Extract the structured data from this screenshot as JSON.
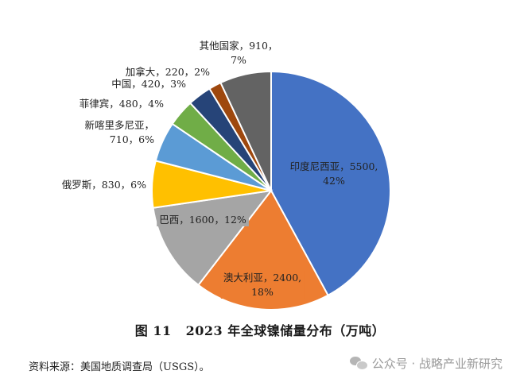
{
  "chart_data": {
    "type": "pie",
    "title": "2023 年全球镍储量分布（万吨）",
    "figure_number": "图 11",
    "slices": [
      {
        "line1": "印度尼西亚，5500,",
        "line2": "42%",
        "name": "印度尼西亚",
        "value": 5500,
        "percent": "42%",
        "color": "#4472C4"
      },
      {
        "line1": "澳大利亚，2400,",
        "line2": "18%",
        "name": "澳大利亚",
        "value": 2400,
        "percent": "18%",
        "color": "#ED7D31"
      },
      {
        "line1": "巴西，1600，12%",
        "line2": "",
        "name": "巴西",
        "value": 1600,
        "percent": "12%",
        "color": "#A5A5A5"
      },
      {
        "line1": "俄罗斯，830，6%",
        "line2": "",
        "name": "俄罗斯",
        "value": 830,
        "percent": "6%",
        "color": "#FFC000"
      },
      {
        "line1": "新喀里多尼亚，",
        "line2": "710，6%",
        "name": "新喀里多尼亚",
        "value": 710,
        "percent": "6%",
        "color": "#5B9BD5"
      },
      {
        "line1": "菲律宾，480，4%",
        "line2": "",
        "name": "菲律宾",
        "value": 480,
        "percent": "4%",
        "color": "#70AD47"
      },
      {
        "line1": "中国，420，3%",
        "line2": "",
        "name": "中国",
        "value": 420,
        "percent": "3%",
        "color": "#264478"
      },
      {
        "line1": "加拿大，220，2%",
        "line2": "",
        "name": "加拿大",
        "value": 220,
        "percent": "2%",
        "color": "#9E480E"
      },
      {
        "line1": "其他国家，910，",
        "line2": "7%",
        "name": "其他国家",
        "value": 910,
        "percent": "7%",
        "color": "#636363"
      }
    ]
  },
  "source_text": "资料来源：美国地质调查局（USGS）。",
  "watermark": {
    "icon": "wechat-icon",
    "text": "公众号 · 战略产业新研究"
  }
}
